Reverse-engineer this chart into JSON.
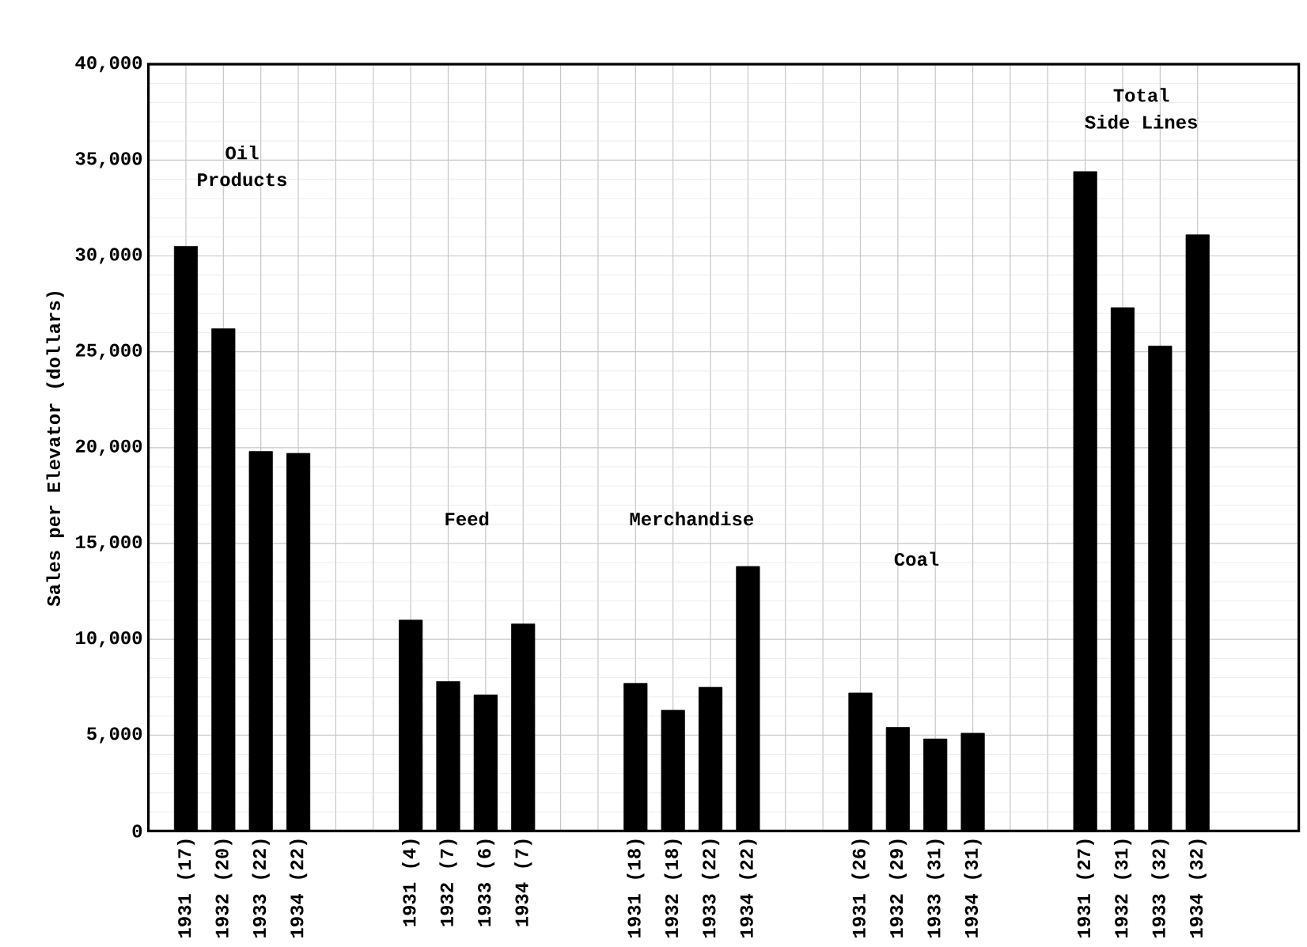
{
  "chart_data": {
    "type": "bar",
    "ylabel": "Sales per Elevator (dollars)",
    "categories": [
      "1931 (17)",
      "1932 (20)",
      "1933 (22)",
      "1934 (22)",
      null,
      null,
      "1931 (4)",
      "1932 (7)",
      "1933 (6)",
      "1934 (7)",
      null,
      null,
      "1931 (18)",
      "1932 (18)",
      "1933 (22)",
      "1934 (22)",
      null,
      null,
      "1931 (26)",
      "1932 (29)",
      "1933 (31)",
      "1934 (31)",
      null,
      null,
      "1931 (27)",
      "1932 (31)",
      "1933 (32)",
      "1934 (32)"
    ],
    "values": [
      30500,
      26200,
      19800,
      19700,
      null,
      null,
      11000,
      7800,
      7100,
      10800,
      null,
      null,
      7700,
      6300,
      7500,
      13800,
      null,
      null,
      7200,
      5400,
      4800,
      5100,
      null,
      null,
      34400,
      27300,
      25300,
      31100
    ],
    "color": "#000000",
    "ylim": [
      0,
      40000
    ],
    "yticks": [
      {
        "value": 0,
        "label": "0"
      },
      {
        "value": 5000,
        "label": "5,000"
      },
      {
        "value": 10000,
        "label": "10,000"
      },
      {
        "value": 15000,
        "label": "15,000"
      },
      {
        "value": 20000,
        "label": "20,000"
      },
      {
        "value": 25000,
        "label": "25,000"
      },
      {
        "value": 30000,
        "label": "30,000"
      },
      {
        "value": 35000,
        "label": "35,000"
      },
      {
        "value": 40000,
        "label": "40,000"
      }
    ],
    "grid": true,
    "annotations": [
      "Oil",
      "Products",
      "Feed",
      "Merchandise",
      "Coal",
      "Total",
      "Side Lines"
    ]
  }
}
